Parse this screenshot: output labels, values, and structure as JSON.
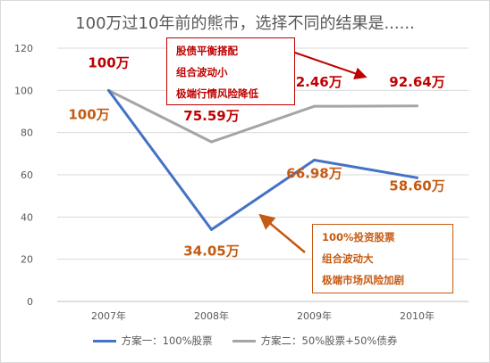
{
  "title": "100万过10年前的熊市，选择不同的结果是......",
  "chart_data": {
    "type": "line",
    "categories": [
      "2007年",
      "2008年",
      "2009年",
      "2010年"
    ],
    "series": [
      {
        "name": "方案一：100%股票",
        "values": [
          100,
          34.05,
          66.98,
          58.6
        ],
        "color": "#4472c4",
        "labels": [
          "100万",
          "34.05万",
          "66.98万",
          "58.60万"
        ],
        "label_color": "#c55a11"
      },
      {
        "name": "方案二：50%股票+50%债券",
        "values": [
          100,
          75.59,
          92.46,
          92.64
        ],
        "color": "#a5a5a5",
        "labels": [
          "100万",
          "75.59万",
          "92.46万",
          "92.64万"
        ],
        "label_color": "#c00000"
      }
    ],
    "ylim": [
      0,
      120
    ],
    "yticks": [
      0,
      20,
      40,
      60,
      80,
      100,
      120
    ],
    "grid": true,
    "legend_position": "bottom"
  },
  "annotations": {
    "balanced": [
      "股债平衡搭配",
      "组合波动小",
      "极端行情风险降低"
    ],
    "all_stock": [
      "100%投资股票",
      "组合波动大",
      "极端市场风险加剧"
    ]
  },
  "colors": {
    "red": "#c00000",
    "orange": "#c55a11"
  }
}
